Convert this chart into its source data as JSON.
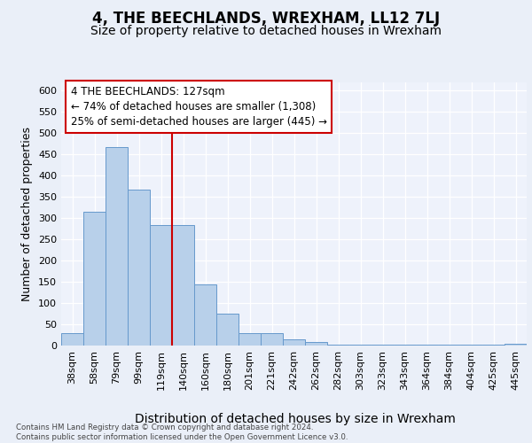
{
  "title": "4, THE BEECHLANDS, WREXHAM, LL12 7LJ",
  "subtitle": "Size of property relative to detached houses in Wrexham",
  "xlabel": "Distribution of detached houses by size in Wrexham",
  "ylabel": "Number of detached properties",
  "categories": [
    "38sqm",
    "58sqm",
    "79sqm",
    "99sqm",
    "119sqm",
    "140sqm",
    "160sqm",
    "180sqm",
    "201sqm",
    "221sqm",
    "242sqm",
    "262sqm",
    "282sqm",
    "303sqm",
    "323sqm",
    "343sqm",
    "364sqm",
    "384sqm",
    "404sqm",
    "425sqm",
    "445sqm"
  ],
  "values": [
    30,
    315,
    467,
    367,
    283,
    283,
    144,
    76,
    30,
    30,
    15,
    8,
    3,
    3,
    3,
    3,
    3,
    3,
    3,
    3,
    5
  ],
  "bar_color": "#b8d0ea",
  "bar_edge_color": "#6699cc",
  "vline_x_idx": 5,
  "vline_color": "#cc0000",
  "annotation_text": "4 THE BEECHLANDS: 127sqm\n← 74% of detached houses are smaller (1,308)\n25% of semi-detached houses are larger (445) →",
  "annotation_box_color": "#ffffff",
  "annotation_box_edge_color": "#cc0000",
  "footer_text": "Contains HM Land Registry data © Crown copyright and database right 2024.\nContains public sector information licensed under the Open Government Licence v3.0.",
  "ylim": [
    0,
    620
  ],
  "yticks": [
    0,
    50,
    100,
    150,
    200,
    250,
    300,
    350,
    400,
    450,
    500,
    550,
    600
  ],
  "bg_color": "#eaeff8",
  "plot_bg_color": "#eef2fb",
  "grid_color": "#ffffff",
  "title_fontsize": 12,
  "subtitle_fontsize": 10,
  "tick_fontsize": 8,
  "ylabel_fontsize": 9,
  "xlabel_fontsize": 10,
  "ann_fontsize": 8.5
}
